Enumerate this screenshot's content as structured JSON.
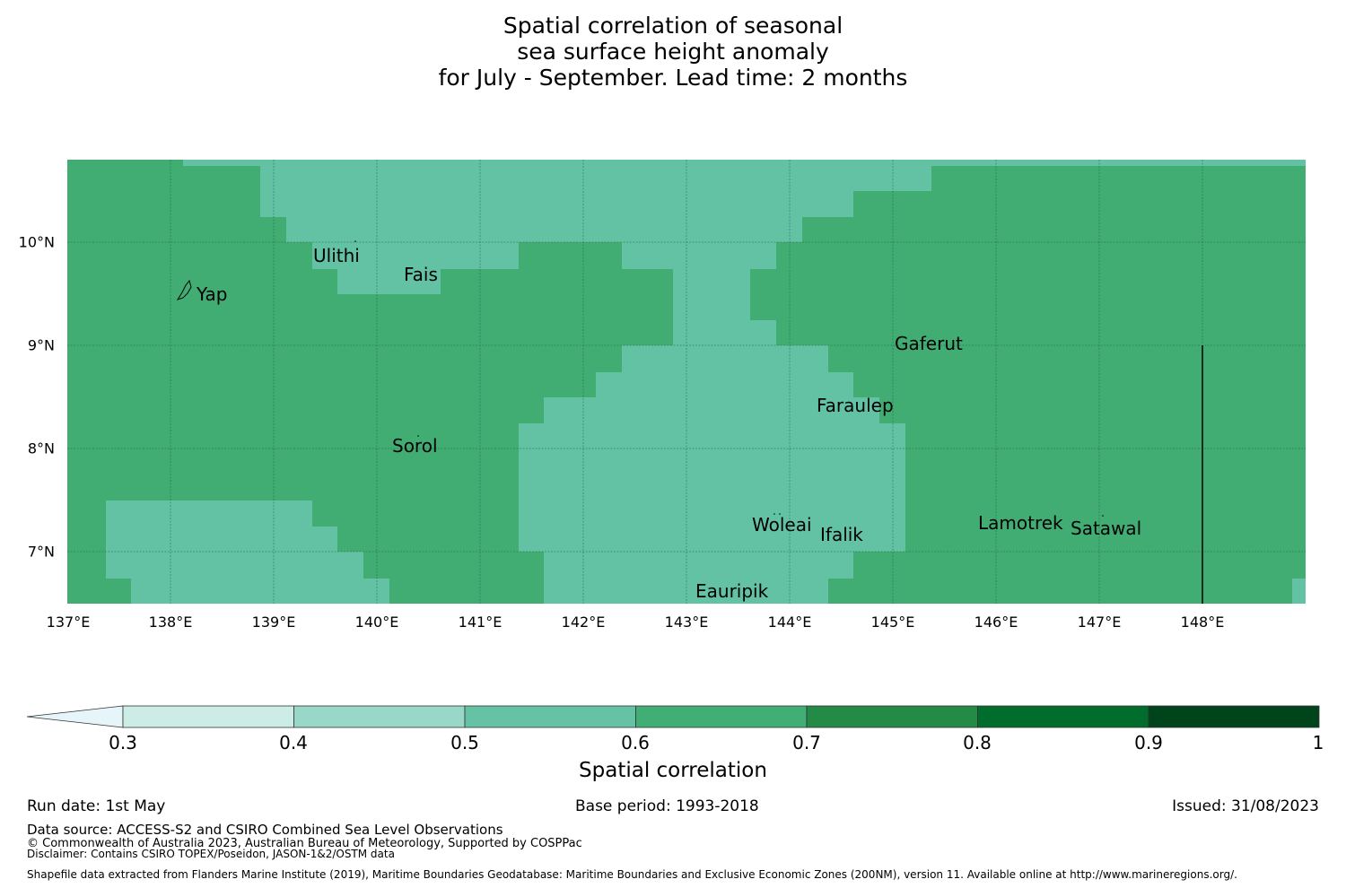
{
  "title_lines": [
    "Spatial correlation of seasonal",
    "sea surface height anomaly",
    "for July - September. Lead time: 2 months"
  ],
  "colors": {
    "class_0_5_0_6": "#63c2a4",
    "class_0_6_0_7": "#41ad73",
    "grid": "#1f5f3a",
    "cbar": [
      "#e5f5f9",
      "#ccece6",
      "#99d8c9",
      "#66c2a4",
      "#41ae76",
      "#238b45",
      "#006d2c",
      "#00441b"
    ]
  },
  "map": {
    "x_ticks": [
      "137°E",
      "138°E",
      "139°E",
      "140°E",
      "141°E",
      "142°E",
      "143°E",
      "144°E",
      "145°E",
      "146°E",
      "147°E",
      "148°E"
    ],
    "y_ticks": [
      "10°N",
      "9°N",
      "8°N",
      "7°N"
    ],
    "places": [
      "Ulithi",
      "Fais",
      "Yap",
      "Gaferut",
      "Faraulep",
      "Sorol",
      "Woleai",
      "Lamotrek",
      "Satawal",
      "Ifalik",
      "Eauripik"
    ]
  },
  "colorbar": {
    "ticks": [
      "0.3",
      "0.4",
      "0.5",
      "0.6",
      "0.7",
      "0.8",
      "0.9",
      "1"
    ],
    "label": "Spatial correlation"
  },
  "footer": {
    "run_date": "Run date: 1st May",
    "base_period": "Base period: 1993-2018",
    "issued": "Issued: 31/08/2023",
    "data_source": "Data source: ACCESS-S2 and CSIRO Combined Sea Level Observations",
    "copyright": "© Commonwealth of Australia 2023, Australian Bureau of Meteorology, Supported by COSPPac",
    "disclaimer": "Disclaimer: Contains CSIRO TOPEX/Poseidon, JASON-1&2/OSTM data",
    "shapefile": "Shapefile data extracted from Flanders Marine Institute (2019), Maritime Boundaries Geodatabase: Maritime Boundaries and Exclusive Economic Zones (200NM), version 11. Available online at http://www.marineregions.org/."
  }
}
